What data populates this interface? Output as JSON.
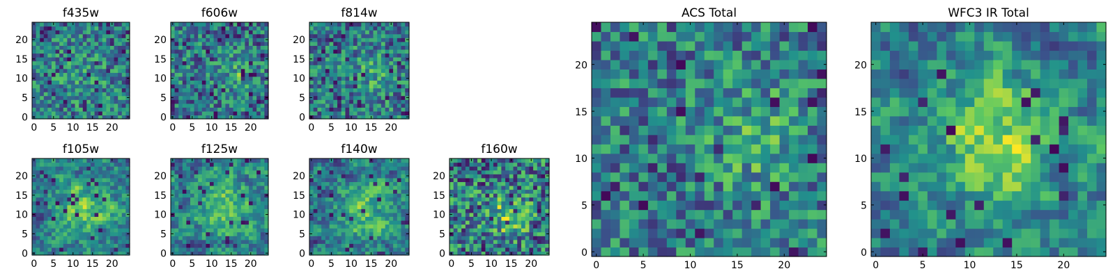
{
  "colors": {
    "viridis_stops": [
      "#440154",
      "#3b528b",
      "#21918c",
      "#5ec962",
      "#fde725"
    ]
  },
  "chart_data": [
    {
      "id": "f435w",
      "title": "f435w",
      "type": "heatmap",
      "grid": [
        25,
        25
      ],
      "xlim": [
        -0.5,
        24.5
      ],
      "ylim": [
        -0.5,
        24.5
      ],
      "xticks": [
        0,
        5,
        10,
        15,
        20
      ],
      "yticks": [
        0,
        5,
        10,
        15,
        20
      ],
      "seed": 435,
      "texture": 0.55,
      "blob": {
        "cx": 12,
        "cy": 11,
        "amp": 0.1,
        "sigma": 5
      },
      "dark_frac": 0.06
    },
    {
      "id": "f606w",
      "title": "f606w",
      "type": "heatmap",
      "grid": [
        25,
        25
      ],
      "xlim": [
        -0.5,
        24.5
      ],
      "ylim": [
        -0.5,
        24.5
      ],
      "xticks": [
        0,
        5,
        10,
        15,
        20
      ],
      "yticks": [
        0,
        5,
        10,
        15,
        20
      ],
      "seed": 606,
      "texture": 0.55,
      "blob": {
        "cx": 17,
        "cy": 11,
        "amp": 0.2,
        "sigma": 3
      },
      "dark_frac": 0.07
    },
    {
      "id": "f814w",
      "title": "f814w",
      "type": "heatmap",
      "grid": [
        25,
        25
      ],
      "xlim": [
        -0.5,
        24.5
      ],
      "ylim": [
        -0.5,
        24.5
      ],
      "xticks": [
        0,
        5,
        10,
        15,
        20
      ],
      "yticks": [
        0,
        5,
        10,
        15,
        20
      ],
      "seed": 814,
      "texture": 0.55,
      "blob": {
        "cx": 15,
        "cy": 11,
        "amp": 0.15,
        "sigma": 4
      },
      "dark_frac": 0.06
    },
    {
      "id": "f105w",
      "title": "f105w",
      "type": "heatmap",
      "grid": [
        25,
        25
      ],
      "xlim": [
        -0.5,
        24.5
      ],
      "ylim": [
        -0.5,
        24.5
      ],
      "xticks": [
        0,
        5,
        10,
        15,
        20
      ],
      "yticks": [
        0,
        5,
        10,
        15,
        20
      ],
      "seed": 105,
      "texture": 0.8,
      "blob": {
        "cx": 13,
        "cy": 12,
        "amp": 0.35,
        "sigma": 5
      },
      "dark_frac": 0.04
    },
    {
      "id": "f125w",
      "title": "f125w",
      "type": "heatmap",
      "grid": [
        25,
        25
      ],
      "xlim": [
        -0.5,
        24.5
      ],
      "ylim": [
        -0.5,
        24.5
      ],
      "xticks": [
        0,
        5,
        10,
        15,
        20
      ],
      "yticks": [
        0,
        5,
        10,
        15,
        20
      ],
      "seed": 125,
      "texture": 0.8,
      "blob": {
        "cx": 13,
        "cy": 12,
        "amp": 0.35,
        "sigma": 5
      },
      "dark_frac": 0.04
    },
    {
      "id": "f140w",
      "title": "f140w",
      "type": "heatmap",
      "grid": [
        25,
        25
      ],
      "xlim": [
        -0.5,
        24.5
      ],
      "ylim": [
        -0.5,
        24.5
      ],
      "xticks": [
        0,
        5,
        10,
        15,
        20
      ],
      "yticks": [
        0,
        5,
        10,
        15,
        20
      ],
      "seed": 140,
      "texture": 0.8,
      "blob": {
        "cx": 13,
        "cy": 11,
        "amp": 0.3,
        "sigma": 5
      },
      "dark_frac": 0.04
    },
    {
      "id": "f160w",
      "title": "f160w",
      "type": "heatmap",
      "grid": [
        25,
        25
      ],
      "xlim": [
        -0.5,
        24.5
      ],
      "ylim": [
        -0.5,
        24.5
      ],
      "xticks": [
        0,
        5,
        10,
        15,
        20
      ],
      "yticks": [
        0,
        5,
        10,
        15,
        20
      ],
      "seed": 160,
      "texture": 0.7,
      "blob": {
        "cx": 14,
        "cy": 10,
        "amp": 0.3,
        "sigma": 4
      },
      "dark_frac": 0.05
    },
    {
      "id": "acs_total",
      "title": "ACS Total",
      "type": "heatmap",
      "grid": [
        25,
        25
      ],
      "xlim": [
        -0.5,
        24.5
      ],
      "ylim": [
        -0.5,
        24.5
      ],
      "xticks": [
        0,
        5,
        10,
        15,
        20
      ],
      "yticks": [
        0,
        5,
        10,
        15,
        20
      ],
      "seed": 7,
      "texture": 0.55,
      "blob": {
        "cx": 17,
        "cy": 12,
        "amp": 0.2,
        "sigma": 4
      },
      "dark_frac": 0.03
    },
    {
      "id": "wfc3_ir_total",
      "title": "WFC3 IR Total",
      "type": "heatmap",
      "grid": [
        25,
        25
      ],
      "xlim": [
        -0.5,
        24.5
      ],
      "ylim": [
        -0.5,
        24.5
      ],
      "xticks": [
        0,
        5,
        10,
        15,
        20
      ],
      "yticks": [
        0,
        5,
        10,
        15,
        20
      ],
      "seed": 31,
      "texture": 0.8,
      "blob": {
        "cx": 13,
        "cy": 12,
        "amp": 0.4,
        "sigma": 5
      },
      "dark_frac": 0.03
    }
  ]
}
